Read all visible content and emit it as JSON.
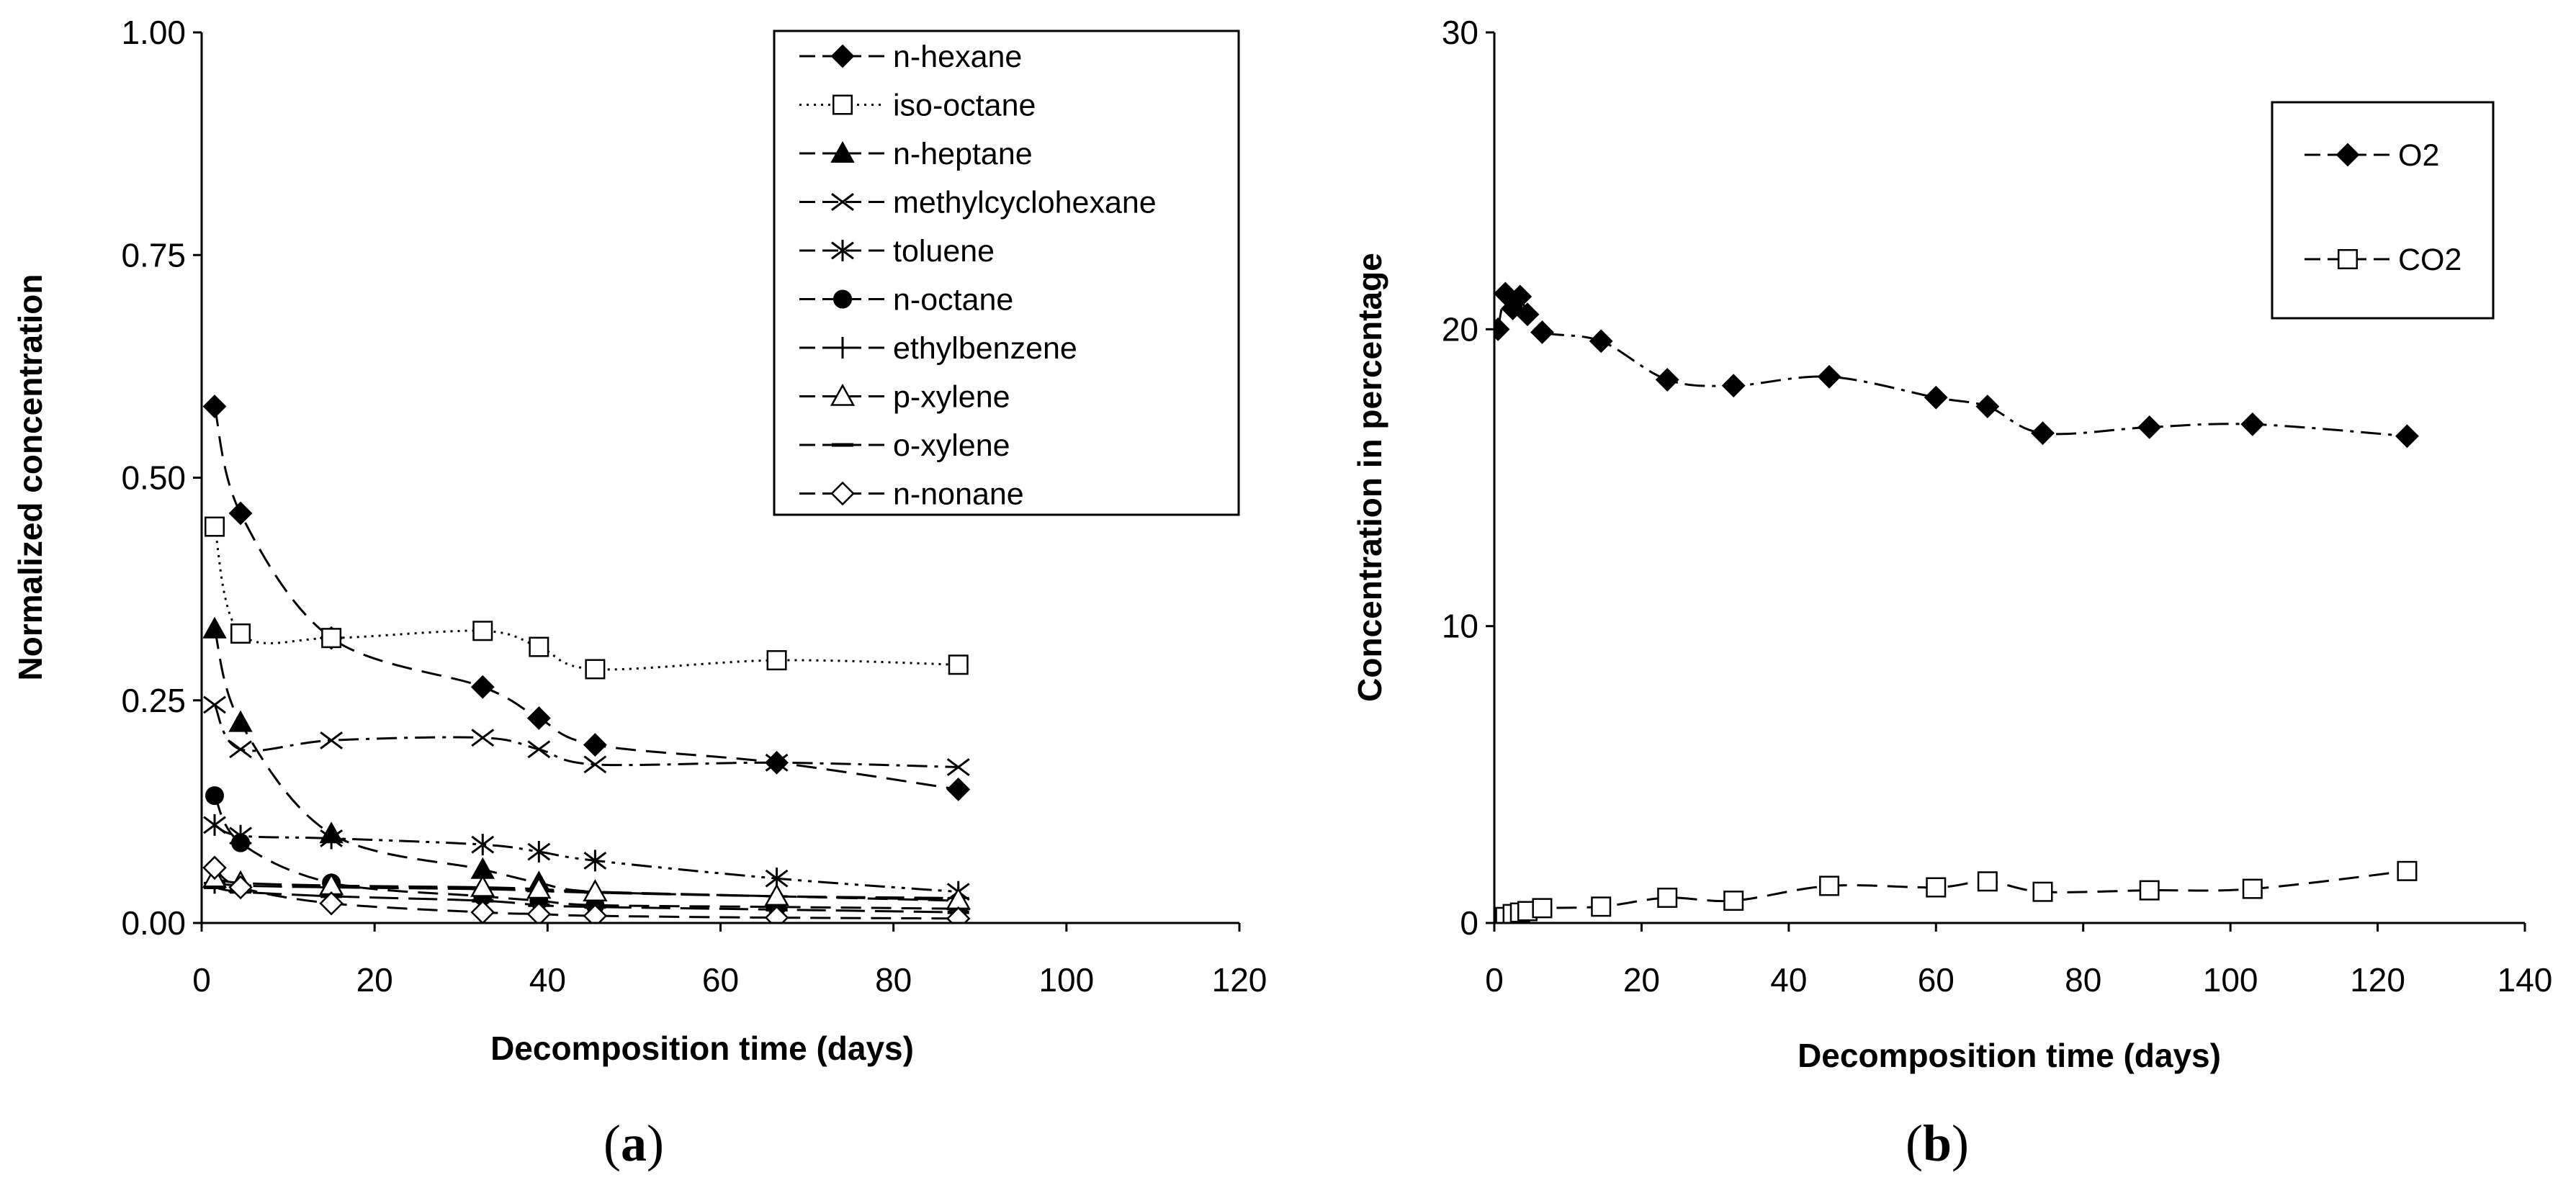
{
  "chart_data": [
    {
      "type": "line",
      "panel_label": "(a)",
      "panel_letter": "a",
      "xlabel": "Decomposition time (days)",
      "ylabel": "Normalized concentration",
      "xlim": [
        0,
        120
      ],
      "ylim": [
        0,
        1.0
      ],
      "xticks": [
        "0",
        "20",
        "40",
        "60",
        "80",
        "100",
        "120"
      ],
      "yticks": [
        "0.00",
        "0.25",
        "0.50",
        "0.75",
        "1.00"
      ],
      "legend_position": "top-right",
      "series": [
        {
          "name": "n-hexane",
          "marker": "diamond-filled",
          "dash": "dashed",
          "x": [
            1.5,
            4.5,
            15,
            32.5,
            39,
            45.5,
            66.5,
            87.5
          ],
          "y": [
            0.58,
            0.46,
            0.32,
            0.265,
            0.23,
            0.2,
            0.18,
            0.15
          ]
        },
        {
          "name": "iso-octane",
          "marker": "square-open",
          "dash": "dotted",
          "x": [
            1.5,
            4.5,
            15,
            32.5,
            39,
            45.5,
            66.5,
            87.5
          ],
          "y": [
            0.445,
            0.325,
            0.32,
            0.328,
            0.31,
            0.285,
            0.295,
            0.29
          ]
        },
        {
          "name": "n-heptane",
          "marker": "triangle-filled",
          "dash": "dashed",
          "x": [
            1.5,
            4.5,
            15,
            32.5,
            39,
            45.5,
            66.5,
            87.5
          ],
          "y": [
            0.33,
            0.225,
            0.1,
            0.06,
            0.045,
            0.035,
            0.03,
            0.025
          ]
        },
        {
          "name": "methylcyclohexane",
          "marker": "x",
          "dash": "dashdot",
          "x": [
            1.5,
            4.5,
            15,
            32.5,
            39,
            45.5,
            66.5,
            87.5
          ],
          "y": [
            0.245,
            0.195,
            0.205,
            0.208,
            0.195,
            0.178,
            0.18,
            0.175
          ]
        },
        {
          "name": "toluene",
          "marker": "asterisk",
          "dash": "dashdotdot",
          "x": [
            1.5,
            4.5,
            15,
            32.5,
            39,
            45.5,
            66.5,
            87.5
          ],
          "y": [
            0.11,
            0.098,
            0.095,
            0.088,
            0.08,
            0.07,
            0.05,
            0.035
          ]
        },
        {
          "name": "n-octane",
          "marker": "circle-filled",
          "dash": "dashed",
          "x": [
            1.5,
            4.5,
            15,
            32.5,
            39,
            45.5,
            66.5,
            87.5
          ],
          "y": [
            0.143,
            0.09,
            0.045,
            0.03,
            0.025,
            0.02,
            0.018,
            0.016
          ]
        },
        {
          "name": "ethylbenzene",
          "marker": "plus",
          "dash": "longdash",
          "x": [
            1.5,
            4.5,
            15,
            32.5,
            39,
            45.5,
            66.5,
            87.5
          ],
          "y": [
            0.045,
            0.042,
            0.04,
            0.038,
            0.036,
            0.034,
            0.03,
            0.028
          ]
        },
        {
          "name": "p-xylene",
          "marker": "triangle-open",
          "dash": "longdash",
          "x": [
            1.5,
            4.5,
            15,
            32.5,
            39,
            45.5,
            66.5,
            87.5
          ],
          "y": [
            0.05,
            0.045,
            0.042,
            0.04,
            0.038,
            0.035,
            0.03,
            0.026
          ]
        },
        {
          "name": "o-xylene",
          "marker": "dash",
          "dash": "longdash",
          "x": [
            1.5,
            4.5,
            15,
            32.5,
            39,
            45.5,
            66.5,
            87.5
          ],
          "y": [
            0.04,
            0.035,
            0.03,
            0.025,
            0.02,
            0.018,
            0.015,
            0.012
          ]
        },
        {
          "name": "n-nonane",
          "marker": "diamond-open",
          "dash": "dashed",
          "x": [
            1.5,
            4.5,
            15,
            32.5,
            39,
            45.5,
            66.5,
            87.5
          ],
          "y": [
            0.062,
            0.04,
            0.022,
            0.012,
            0.01,
            0.008,
            0.006,
            0.005
          ]
        }
      ]
    },
    {
      "type": "line",
      "panel_label": "(b)",
      "panel_letter": "b",
      "xlabel": "Decomposition time (days)",
      "ylabel": "Concentration in percentage",
      "xlim": [
        0,
        140
      ],
      "ylim": [
        0,
        30
      ],
      "xticks": [
        "0",
        "20",
        "40",
        "60",
        "80",
        "100",
        "120",
        "140"
      ],
      "yticks": [
        "0",
        "10",
        "20",
        "30"
      ],
      "legend_position": "top-right",
      "series": [
        {
          "name": "O2",
          "marker": "diamond-filled",
          "dash": "dashdot",
          "x": [
            0.5,
            1.5,
            2.5,
            3.5,
            4.5,
            6.5,
            14.5,
            23.5,
            32.5,
            45.5,
            60,
            67,
            74.5,
            89,
            103,
            124
          ],
          "y": [
            20.0,
            21.2,
            20.7,
            21.1,
            20.5,
            19.9,
            19.6,
            18.3,
            18.1,
            18.4,
            17.7,
            17.4,
            16.5,
            16.7,
            16.8,
            16.4
          ]
        },
        {
          "name": "CO2",
          "marker": "square-open",
          "dash": "dashed",
          "x": [
            0.5,
            1.5,
            2.5,
            3.5,
            4.5,
            6.5,
            14.5,
            23.5,
            32.5,
            45.5,
            60,
            67,
            74.5,
            89,
            103,
            124
          ],
          "y": [
            0.1,
            0.2,
            0.3,
            0.35,
            0.4,
            0.5,
            0.55,
            0.85,
            0.75,
            1.25,
            1.2,
            1.4,
            1.05,
            1.1,
            1.15,
            1.75
          ]
        }
      ]
    }
  ]
}
